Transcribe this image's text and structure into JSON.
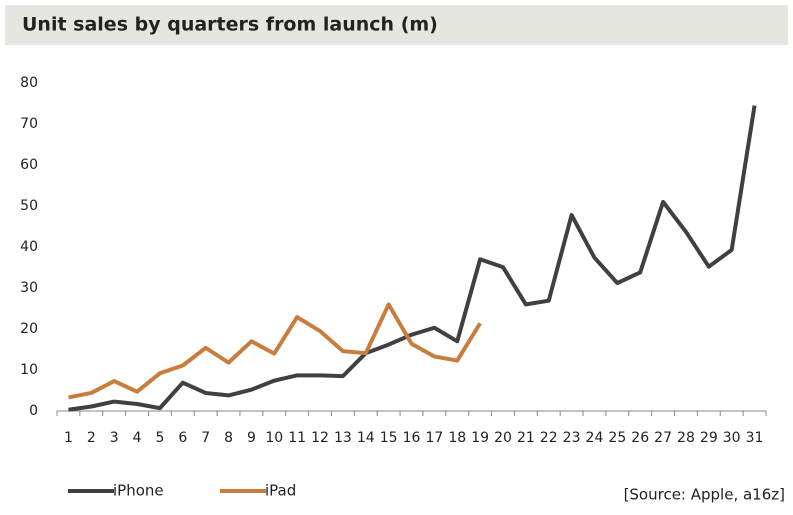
{
  "chart_data": {
    "type": "line",
    "title": "Unit sales by quarters from launch (m)",
    "categories": [
      "1",
      "2",
      "3",
      "4",
      "5",
      "6",
      "7",
      "8",
      "9",
      "10",
      "11",
      "12",
      "13",
      "14",
      "15",
      "16",
      "17",
      "18",
      "19",
      "20",
      "21",
      "22",
      "23",
      "24",
      "25",
      "26",
      "27",
      "28",
      "29",
      "30",
      "31"
    ],
    "series": [
      {
        "name": "iPhone",
        "color": "#404040",
        "values": [
          0.3,
          1.1,
          2.3,
          1.7,
          0.7,
          6.9,
          4.4,
          3.8,
          5.2,
          7.4,
          8.7,
          8.7,
          8.5,
          14.1,
          16.2,
          18.6,
          20.3,
          17.0,
          37.0,
          35.1,
          26.0,
          26.9,
          47.8,
          37.4,
          31.2,
          33.8,
          51.0,
          43.7,
          35.2,
          39.3,
          74.5
        ]
      },
      {
        "name": "iPad",
        "color": "#c87d3c",
        "values": [
          3.3,
          4.4,
          7.3,
          4.7,
          9.2,
          11.1,
          15.4,
          11.8,
          17.0,
          14.0,
          22.9,
          19.5,
          14.6,
          14.1,
          26.0,
          16.4,
          13.3,
          12.3,
          21.4,
          null,
          null,
          null,
          null,
          null,
          null,
          null,
          null,
          null,
          null,
          null,
          null
        ]
      }
    ],
    "ylim": [
      0,
      80
    ],
    "yticks": [
      0,
      10,
      20,
      30,
      40,
      50,
      60,
      70,
      80
    ],
    "grid": false,
    "legend": "bottom-left",
    "source": "[Source: Apple, a16z]"
  }
}
